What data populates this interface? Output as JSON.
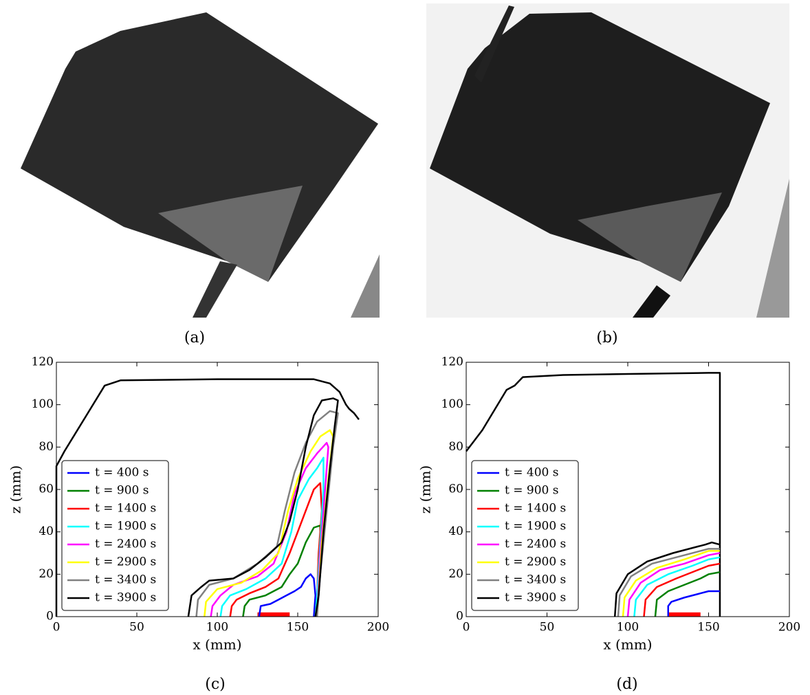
{
  "photos": [
    {
      "caption": "(a)"
    },
    {
      "caption": "(b)"
    }
  ],
  "chart_data": [
    {
      "type": "line",
      "caption": "(c)",
      "xlabel": "x (mm)",
      "ylabel": "z (mm)",
      "xlim": [
        0,
        200
      ],
      "ylim": [
        0,
        120
      ],
      "xticks": [
        0,
        50,
        100,
        150,
        200
      ],
      "yticks": [
        0,
        20,
        40,
        60,
        80,
        100,
        120
      ],
      "legend": "lower left",
      "shapes": [
        {
          "type": "rect",
          "x": [
            125,
            145
          ],
          "y": [
            0,
            2
          ],
          "color": "#ff0000"
        }
      ],
      "series": [
        {
          "color": "#000000",
          "x": [
            0,
            0,
            5,
            30,
            40,
            100,
            160,
            170,
            176,
            180,
            182,
            185,
            188
          ],
          "values": [
            0,
            71,
            78,
            109,
            111.5,
            112,
            112,
            110,
            106,
            100,
            98,
            96,
            93
          ]
        },
        {
          "name": "t = 400 s",
          "color": "#0000ff",
          "x": [
            126,
            127,
            133,
            138,
            143,
            148,
            152,
            155,
            158,
            160,
            161,
            160
          ],
          "values": [
            0,
            5,
            6,
            8,
            10,
            12,
            14,
            18,
            20,
            18,
            10,
            0
          ]
        },
        {
          "name": "t = 900 s",
          "color": "#008000",
          "x": [
            116,
            117,
            120,
            130,
            140,
            145,
            150,
            155,
            160,
            164,
            164,
            162,
            161
          ],
          "values": [
            0,
            5,
            8,
            10,
            14,
            20,
            25,
            35,
            42,
            43,
            30,
            10,
            0
          ]
        },
        {
          "name": "t = 1400 s",
          "color": "#ff0000",
          "x": [
            108,
            109,
            112,
            120,
            130,
            138,
            145,
            150,
            155,
            160,
            164,
            165,
            163,
            162,
            161
          ],
          "values": [
            0,
            5,
            8,
            11,
            14,
            18,
            30,
            40,
            50,
            60,
            63,
            50,
            30,
            10,
            0
          ]
        },
        {
          "name": "t = 1900 s",
          "color": "#00ffff",
          "x": [
            102,
            103,
            108,
            118,
            130,
            140,
            146,
            150,
            157,
            162,
            166,
            166,
            164,
            162,
            161
          ],
          "values": [
            0,
            5,
            10,
            13,
            18,
            25,
            40,
            55,
            65,
            70,
            75,
            60,
            35,
            10,
            0
          ]
        },
        {
          "name": "t = 2400 s",
          "color": "#ff00ff",
          "x": [
            96,
            97,
            102,
            110,
            125,
            135,
            143,
            148,
            155,
            162,
            168,
            169,
            167,
            164,
            162
          ],
          "values": [
            0,
            5,
            10,
            15,
            19,
            25,
            40,
            58,
            70,
            77,
            82,
            80,
            60,
            30,
            0
          ]
        },
        {
          "name": "t = 2900 s",
          "color": "#ffff00",
          "x": [
            92,
            93,
            100,
            115,
            128,
            138,
            144,
            150,
            158,
            164,
            170,
            172,
            169,
            165,
            162
          ],
          "values": [
            0,
            7,
            13,
            16,
            22,
            30,
            50,
            65,
            78,
            85,
            88,
            85,
            65,
            35,
            0
          ]
        },
        {
          "name": "t = 3400 s",
          "color": "#808080",
          "x": [
            87,
            88,
            95,
            110,
            125,
            137,
            142,
            148,
            155,
            162,
            170,
            175,
            172,
            168,
            164,
            162
          ],
          "values": [
            0,
            8,
            15,
            18,
            25,
            33,
            50,
            68,
            82,
            92,
            97,
            96,
            80,
            50,
            20,
            0
          ]
        },
        {
          "name": "t = 3900 s",
          "color": "#000000",
          "x": [
            82,
            84,
            90,
            95,
            110,
            120,
            130,
            140,
            145,
            150,
            155,
            160,
            165,
            172,
            175,
            173,
            170,
            166,
            163,
            161
          ],
          "values": [
            0,
            10,
            14,
            17,
            18,
            22,
            28,
            35,
            45,
            60,
            80,
            95,
            102,
            103,
            102,
            90,
            70,
            40,
            10,
            0
          ]
        }
      ]
    },
    {
      "type": "line",
      "caption": "(d)",
      "xlabel": "x (mm)",
      "ylabel": "z (mm)",
      "xlim": [
        0,
        200
      ],
      "ylim": [
        0,
        120
      ],
      "xticks": [
        0,
        50,
        100,
        150,
        200
      ],
      "yticks": [
        0,
        20,
        40,
        60,
        80,
        100,
        120
      ],
      "legend": "lower left",
      "shapes": [
        {
          "type": "rect",
          "x": [
            125,
            145
          ],
          "y": [
            0,
            2
          ],
          "color": "#ff0000"
        }
      ],
      "series": [
        {
          "color": "#000000",
          "x": [
            0,
            10,
            25,
            30,
            35,
            60,
            100,
            150,
            157,
            157
          ],
          "values": [
            78,
            88,
            107,
            109,
            113,
            114,
            114.5,
            115,
            115,
            0
          ]
        },
        {
          "name": "t = 400 s",
          "color": "#0000ff",
          "x": [
            125,
            125,
            127,
            135,
            145,
            150,
            157
          ],
          "values": [
            0,
            5,
            7,
            9,
            11,
            12,
            12
          ]
        },
        {
          "name": "t = 900 s",
          "color": "#008000",
          "x": [
            117,
            118,
            125,
            135,
            145,
            150,
            157
          ],
          "values": [
            0,
            8,
            12,
            15,
            18,
            20,
            21
          ]
        },
        {
          "name": "t = 1400 s",
          "color": "#ff0000",
          "x": [
            110,
            111,
            118,
            130,
            140,
            150,
            157
          ],
          "values": [
            0,
            8,
            14,
            18,
            21,
            24,
            25
          ]
        },
        {
          "name": "t = 1900 s",
          "color": "#00ffff",
          "x": [
            104,
            105,
            112,
            125,
            140,
            150,
            157
          ],
          "values": [
            0,
            8,
            15,
            20,
            24,
            27,
            28
          ]
        },
        {
          "name": "t = 2400 s",
          "color": "#ff00ff",
          "x": [
            100,
            101,
            108,
            120,
            135,
            150,
            157
          ],
          "values": [
            0,
            8,
            16,
            22,
            25,
            29,
            30
          ]
        },
        {
          "name": "t = 2900 s",
          "color": "#ffff00",
          "x": [
            97,
            98,
            105,
            118,
            135,
            150,
            157
          ],
          "values": [
            0,
            9,
            17,
            23,
            27,
            31,
            31
          ]
        },
        {
          "name": "t = 3400 s",
          "color": "#808080",
          "x": [
            94,
            95,
            102,
            115,
            130,
            150,
            157
          ],
          "values": [
            0,
            10,
            19,
            25,
            28,
            32,
            32
          ]
        },
        {
          "name": "t = 3900 s",
          "color": "#000000",
          "x": [
            92,
            93,
            100,
            112,
            128,
            148,
            152,
            157
          ],
          "values": [
            0,
            11,
            20,
            26,
            30,
            34,
            35,
            34
          ]
        }
      ]
    }
  ]
}
